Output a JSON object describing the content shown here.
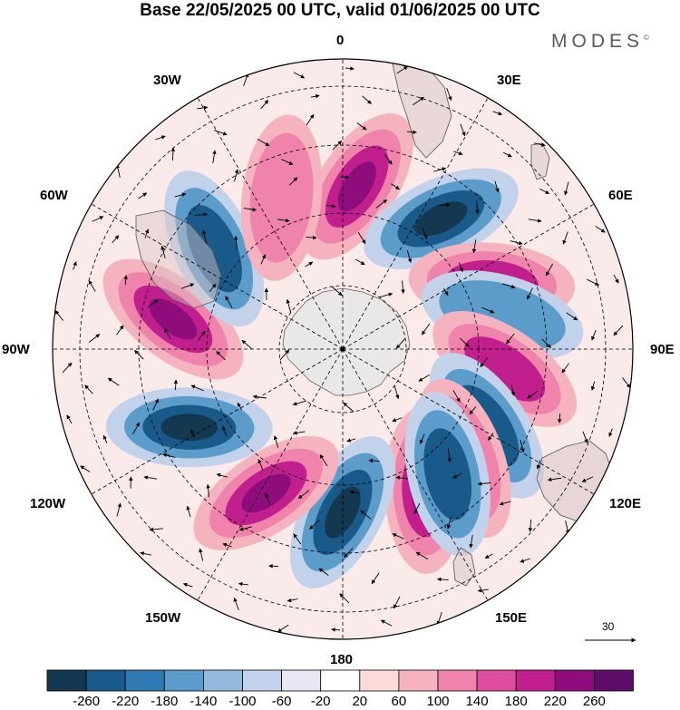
{
  "title": "Base 22/05/2025 00 UTC, valid 01/06/2025 00 UTC",
  "brand": "MODES",
  "brand_mark": "©",
  "longitude_labels": {
    "lon_0": "0",
    "lon_30e": "30E",
    "lon_60e": "60E",
    "lon_90e": "90E",
    "lon_120e": "120E",
    "lon_150e": "150E",
    "lon_180": "180",
    "lon_150w": "150W",
    "lon_120w": "120W",
    "lon_90w": "90W",
    "lon_60w": "60W",
    "lon_30w": "30W"
  },
  "vector_scale": {
    "label": "30"
  },
  "colorbar": {
    "ticks": [
      "-260",
      "-220",
      "-180",
      "-140",
      "-100",
      "-60",
      "-20",
      "20",
      "60",
      "100",
      "140",
      "180",
      "220",
      "260"
    ],
    "colors": [
      "#14384f",
      "#1a5a8a",
      "#2f7ab3",
      "#5b9cca",
      "#93b9dc",
      "#c2d2ea",
      "#e7e7f4",
      "#ffffff",
      "#fbdada",
      "#f5b3bf",
      "#ef83ab",
      "#de4e9c",
      "#c11f8d",
      "#8f0c7c",
      "#5c0e68"
    ]
  },
  "anomaly_lobes": [
    {
      "lon": 5,
      "sign": 1,
      "level": 3
    },
    {
      "lon": 37,
      "sign": -1,
      "level": 3
    },
    {
      "lon": 66,
      "sign": 1,
      "level": 2
    },
    {
      "lon": 78,
      "sign": -1,
      "level": 1
    },
    {
      "lon": 97,
      "sign": 1,
      "level": 2
    },
    {
      "lon": 118,
      "sign": -1,
      "level": 2
    },
    {
      "lon": 150,
      "sign": 1,
      "level": 3
    },
    {
      "lon": 180,
      "sign": -1,
      "level": 3
    },
    {
      "lon": -152,
      "sign": 1,
      "level": 3
    },
    {
      "lon": -117,
      "sign": -1,
      "level": 3
    },
    {
      "lon": -80,
      "sign": 1,
      "level": 3
    },
    {
      "lon": -52,
      "sign": -1,
      "level": 2
    },
    {
      "lon": -22,
      "sign": 1,
      "level": 1
    },
    {
      "lon": 132,
      "sign": 1,
      "level": 1
    },
    {
      "lon": 140,
      "sign": -1,
      "level": 2
    }
  ]
}
